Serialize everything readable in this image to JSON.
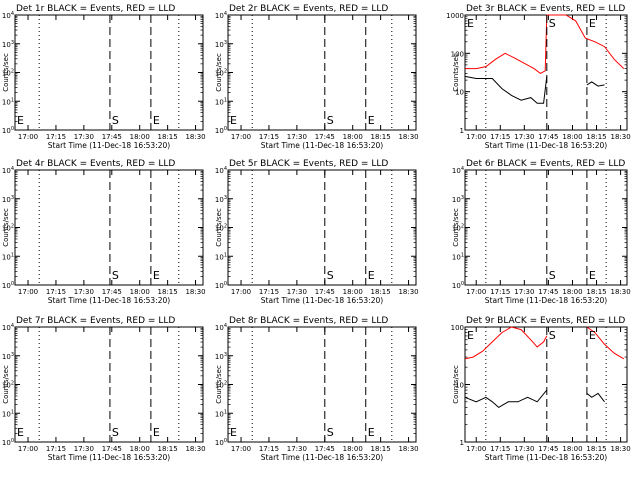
{
  "figure": {
    "title_tpl": "BLACK = Events, RED = LLD",
    "xlabel": "Start Time (11-Dec-18 16:53:20)",
    "ylabel": "Counts/sec",
    "xticks": [
      "17:00",
      "17:15",
      "17:30",
      "17:45",
      "18:00",
      "18:15",
      "18:30"
    ],
    "colors": {
      "events": "#000000",
      "lld": "#ff0000",
      "axes": "#000000"
    }
  },
  "chart_data": [
    {
      "type": "line",
      "title": "Det 1r BLACK = Events, RED = LLD",
      "scale": "log",
      "ylim": [
        1,
        10000
      ],
      "yticks": [
        "10^0",
        "10^1",
        "10^2",
        "10^3",
        "10^4"
      ],
      "markers": [
        {
          "label": "E",
          "time": "16:53"
        },
        {
          "label": "S",
          "time": "17:44"
        },
        {
          "label": "E",
          "time": "18:06"
        }
      ],
      "dotted_times": [
        "17:06",
        "18:21"
      ],
      "series": []
    },
    {
      "type": "line",
      "title": "Det 2r BLACK = Events, RED = LLD",
      "scale": "log",
      "ylim": [
        1,
        10000
      ],
      "yticks": [
        "10^0",
        "10^1",
        "10^2",
        "10^3",
        "10^4"
      ],
      "markers": [
        {
          "label": "E",
          "time": "16:53"
        },
        {
          "label": "S",
          "time": "17:45"
        },
        {
          "label": "E",
          "time": "18:07"
        }
      ],
      "dotted_times": [
        "17:06",
        "18:21"
      ],
      "series": []
    },
    {
      "type": "line",
      "title": "Det 3r BLACK = Events, RED = LLD",
      "scale": "log",
      "ylim": [
        1,
        1000
      ],
      "yticks": [
        "1",
        "10",
        "100",
        "1000"
      ],
      "markers": [
        {
          "label": "E",
          "time": "16:53"
        },
        {
          "label": "S",
          "time": "17:44"
        },
        {
          "label": "E",
          "time": "18:09"
        }
      ],
      "dotted_times": [
        "17:06",
        "18:21"
      ],
      "series": [
        {
          "color": "#ff0000",
          "x": [
            "16:53",
            "17:00",
            "17:06",
            "17:12",
            "17:18",
            "17:24",
            "17:30",
            "17:36",
            "17:40",
            "17:43",
            "17:44",
            "17:46",
            "17:50",
            "17:56",
            "18:02",
            "18:08",
            "18:14",
            "18:20",
            "18:26",
            "18:32"
          ],
          "y": [
            40,
            40,
            45,
            70,
            100,
            75,
            55,
            40,
            30,
            35,
            1000,
            1000,
            1000,
            1000,
            700,
            250,
            200,
            150,
            70,
            40
          ]
        },
        {
          "color": "#000000",
          "x": [
            "16:53",
            "17:00",
            "17:06",
            "17:10",
            "17:16",
            "17:22",
            "17:28",
            "17:34",
            "17:38",
            "17:42",
            "17:44"
          ],
          "y": [
            25,
            22,
            22,
            22,
            12,
            8,
            6,
            7,
            5,
            5,
            25
          ]
        },
        {
          "color": "#000000",
          "x": [
            "18:09",
            "18:12",
            "18:16",
            "18:20"
          ],
          "y": [
            15,
            18,
            14,
            15
          ]
        }
      ]
    },
    {
      "type": "line",
      "title": "Det 4r BLACK = Events, RED = LLD",
      "scale": "log",
      "ylim": [
        1,
        10000
      ],
      "yticks": [
        "10^0",
        "10^1",
        "10^2",
        "10^3",
        "10^4"
      ],
      "markers": [
        {
          "label": "S",
          "time": "17:44"
        },
        {
          "label": "E",
          "time": "18:06"
        }
      ],
      "dotted_times": [
        "17:06",
        "18:21"
      ],
      "series": []
    },
    {
      "type": "line",
      "title": "Det 5r BLACK = Events, RED = LLD",
      "scale": "log",
      "ylim": [
        1,
        10000
      ],
      "yticks": [
        "10^0",
        "10^1",
        "10^2",
        "10^3",
        "10^4"
      ],
      "markers": [
        {
          "label": "S",
          "time": "17:45"
        },
        {
          "label": "E",
          "time": "18:07"
        }
      ],
      "dotted_times": [
        "17:06",
        "18:21"
      ],
      "series": []
    },
    {
      "type": "line",
      "title": "Det 6r BLACK = Events, RED = LLD",
      "scale": "log",
      "ylim": [
        1,
        10000
      ],
      "yticks": [
        "10^0",
        "10^1",
        "10^2",
        "10^3",
        "10^4"
      ],
      "markers": [
        {
          "label": "S",
          "time": "17:44"
        },
        {
          "label": "E",
          "time": "18:09"
        }
      ],
      "dotted_times": [
        "17:06",
        "18:21"
      ],
      "series": []
    },
    {
      "type": "line",
      "title": "Det 7r BLACK = Events, RED = LLD",
      "scale": "log",
      "ylim": [
        1,
        10000
      ],
      "yticks": [
        "10^0",
        "10^1",
        "10^2",
        "10^3",
        "10^4"
      ],
      "markers": [
        {
          "label": "E",
          "time": "16:53"
        },
        {
          "label": "S",
          "time": "17:44"
        },
        {
          "label": "E",
          "time": "18:06"
        }
      ],
      "dotted_times": [
        "17:06",
        "18:21"
      ],
      "series": []
    },
    {
      "type": "line",
      "title": "Det 8r BLACK = Events, RED = LLD",
      "scale": "log",
      "ylim": [
        1,
        10000
      ],
      "yticks": [
        "10^0",
        "10^1",
        "10^2",
        "10^3",
        "10^4"
      ],
      "markers": [
        {
          "label": "E",
          "time": "16:53"
        },
        {
          "label": "S",
          "time": "17:45"
        },
        {
          "label": "E",
          "time": "18:07"
        }
      ],
      "dotted_times": [
        "17:06",
        "18:21"
      ],
      "series": []
    },
    {
      "type": "line",
      "title": "Det 9r BLACK = Events, RED = LLD",
      "scale": "log",
      "ylim": [
        1,
        100
      ],
      "yticks": [
        "1",
        "10",
        "100"
      ],
      "markers": [
        {
          "label": "E",
          "time": "16:53"
        },
        {
          "label": "S",
          "time": "17:44"
        },
        {
          "label": "E",
          "time": "18:09"
        }
      ],
      "dotted_times": [
        "17:06",
        "18:21"
      ],
      "series": [
        {
          "color": "#ff0000",
          "x": [
            "16:53",
            "16:58",
            "17:04",
            "17:10",
            "17:16",
            "17:22",
            "17:28",
            "17:34",
            "17:38",
            "17:42",
            "17:44"
          ],
          "y": [
            28,
            30,
            38,
            55,
            80,
            100,
            90,
            60,
            45,
            55,
            70
          ]
        },
        {
          "color": "#ff0000",
          "x": [
            "18:09",
            "18:14",
            "18:20",
            "18:26",
            "18:32"
          ],
          "y": [
            100,
            80,
            50,
            35,
            28
          ]
        },
        {
          "color": "#000000",
          "x": [
            "16:53",
            "17:00",
            "17:06",
            "17:10",
            "17:14",
            "17:20",
            "17:26",
            "17:32",
            "17:38",
            "17:44"
          ],
          "y": [
            6,
            5,
            6,
            5,
            4,
            5,
            5,
            6,
            5,
            8
          ]
        },
        {
          "color": "#000000",
          "x": [
            "18:09",
            "18:12",
            "18:16",
            "18:20"
          ],
          "y": [
            7,
            6,
            7,
            5
          ]
        }
      ]
    }
  ]
}
